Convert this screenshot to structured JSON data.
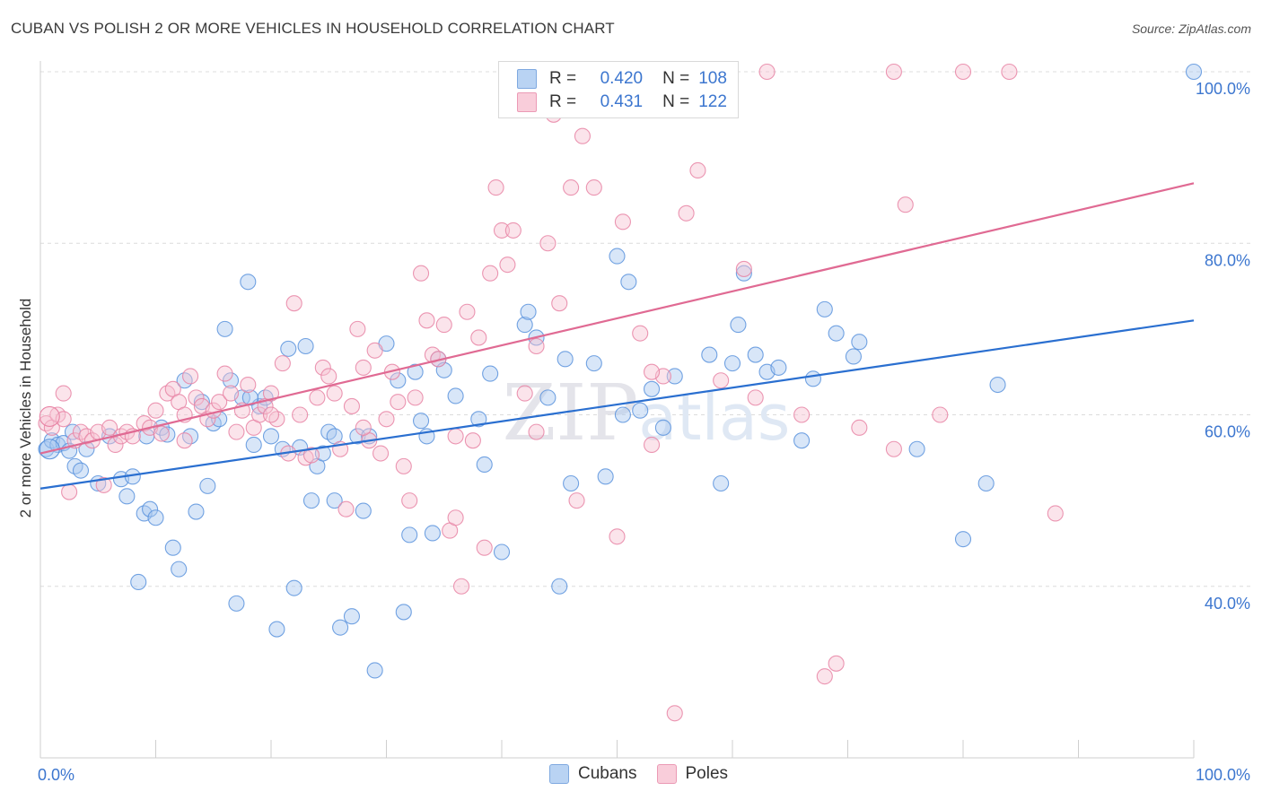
{
  "title": "CUBAN VS POLISH 2 OR MORE VEHICLES IN HOUSEHOLD CORRELATION CHART",
  "source": "Source: ZipAtlas.com",
  "watermark": "ZIPatlas",
  "legend": {
    "r_label": "R =",
    "n_label": "N =",
    "rows": [
      {
        "name": "Cubans",
        "r": "0.420",
        "n": "108",
        "color": "#9dc3ef"
      },
      {
        "name": "Poles",
        "r": "0.431",
        "n": "122",
        "color": "#f4b8cb"
      }
    ]
  },
  "chart_data": {
    "type": "scatter",
    "title": "CUBAN VS POLISH 2 OR MORE VEHICLES IN HOUSEHOLD CORRELATION CHART",
    "xlabel": "",
    "ylabel": "2 or more Vehicles in Household",
    "xlim": [
      0,
      100
    ],
    "ylim": [
      20,
      100
    ],
    "x_tick_labels": [
      "0.0%",
      "100.0%"
    ],
    "y_tick_labels": [
      "40.0%",
      "60.0%",
      "80.0%",
      "100.0%"
    ],
    "y_ticks": [
      40,
      60,
      80,
      100
    ],
    "grid": true,
    "legend_position": "top-center",
    "series": [
      {
        "name": "Cubans",
        "color": "#5b93dd",
        "fill": "#a8c8f0",
        "trend": {
          "x": [
            0,
            100
          ],
          "y": [
            51.4,
            71.0
          ],
          "color": "#2a6fd0"
        },
        "points": [
          [
            0.5,
            56.0
          ],
          [
            1.0,
            57.0
          ],
          [
            1.5,
            56.5
          ],
          [
            2.0,
            56.7
          ],
          [
            2.5,
            55.8
          ],
          [
            3.0,
            54.0
          ],
          [
            3.5,
            53.5
          ],
          [
            4.0,
            56.0
          ],
          [
            5.0,
            52.0
          ],
          [
            6.0,
            57.5
          ],
          [
            7.0,
            52.5
          ],
          [
            7.5,
            50.5
          ],
          [
            8.0,
            52.8
          ],
          [
            8.5,
            40.5
          ],
          [
            9.0,
            48.5
          ],
          [
            9.5,
            49.0
          ],
          [
            10.0,
            48.0
          ],
          [
            10.5,
            58.5
          ],
          [
            11.0,
            57.7
          ],
          [
            11.5,
            44.5
          ],
          [
            12.0,
            42.0
          ],
          [
            12.5,
            64.0
          ],
          [
            13.0,
            57.5
          ],
          [
            13.5,
            48.7
          ],
          [
            14.0,
            61.5
          ],
          [
            14.5,
            51.7
          ],
          [
            15.0,
            59.0
          ],
          [
            15.5,
            59.5
          ],
          [
            16.0,
            70.0
          ],
          [
            16.5,
            64.0
          ],
          [
            17.0,
            38.0
          ],
          [
            17.5,
            62.0
          ],
          [
            18.0,
            75.5
          ],
          [
            18.5,
            56.5
          ],
          [
            19.0,
            61.0
          ],
          [
            19.5,
            62.0
          ],
          [
            20.0,
            57.5
          ],
          [
            20.5,
            35.0
          ],
          [
            21.0,
            56.0
          ],
          [
            21.5,
            67.7
          ],
          [
            22.0,
            39.8
          ],
          [
            22.5,
            56.2
          ],
          [
            23.0,
            68.0
          ],
          [
            23.5,
            50.0
          ],
          [
            24.0,
            54.0
          ],
          [
            24.5,
            55.5
          ],
          [
            25.0,
            58.0
          ],
          [
            25.5,
            50.0
          ],
          [
            26.0,
            35.2
          ],
          [
            27.0,
            36.5
          ],
          [
            27.5,
            57.5
          ],
          [
            28.0,
            48.8
          ],
          [
            28.5,
            57.5
          ],
          [
            29.0,
            30.2
          ],
          [
            30.0,
            68.3
          ],
          [
            31.0,
            64.0
          ],
          [
            31.5,
            37.0
          ],
          [
            32.0,
            46.0
          ],
          [
            32.5,
            65.0
          ],
          [
            33.0,
            59.3
          ],
          [
            34.0,
            46.2
          ],
          [
            34.5,
            66.5
          ],
          [
            35.0,
            65.2
          ],
          [
            36.0,
            62.2
          ],
          [
            38.0,
            59.5
          ],
          [
            38.5,
            54.2
          ],
          [
            39.0,
            64.8
          ],
          [
            40.0,
            44.0
          ],
          [
            42.0,
            70.5
          ],
          [
            42.3,
            72.0
          ],
          [
            43.0,
            69.0
          ],
          [
            44.0,
            62.0
          ],
          [
            45.0,
            40.0
          ],
          [
            45.5,
            66.5
          ],
          [
            46.0,
            52.0
          ],
          [
            48.0,
            66.0
          ],
          [
            49.0,
            52.8
          ],
          [
            50.0,
            78.5
          ],
          [
            51.0,
            75.5
          ],
          [
            52.0,
            60.5
          ],
          [
            53.0,
            63.0
          ],
          [
            54.0,
            58.5
          ],
          [
            55.0,
            64.5
          ],
          [
            58.0,
            67.0
          ],
          [
            59.0,
            52.0
          ],
          [
            60.0,
            66.0
          ],
          [
            60.5,
            70.5
          ],
          [
            61.0,
            76.5
          ],
          [
            62.0,
            67.0
          ],
          [
            63.0,
            65.0
          ],
          [
            64.0,
            65.5
          ],
          [
            66.0,
            57.0
          ],
          [
            67.0,
            64.2
          ],
          [
            68.0,
            72.3
          ],
          [
            69.0,
            69.5
          ],
          [
            70.5,
            66.8
          ],
          [
            71.0,
            68.5
          ],
          [
            76.0,
            56.0
          ],
          [
            80.0,
            45.5
          ],
          [
            82.0,
            52.0
          ],
          [
            83.0,
            63.5
          ],
          [
            100.0,
            100.0
          ],
          [
            2.8,
            58.0
          ],
          [
            9.2,
            57.5
          ],
          [
            18.2,
            62.0
          ],
          [
            25.5,
            57.5
          ],
          [
            33.5,
            57.5
          ],
          [
            50.5,
            60.0
          ]
        ]
      },
      {
        "name": "Poles",
        "color": "#e884a5",
        "fill": "#f7c3d3",
        "trend": {
          "x": [
            0,
            100
          ],
          "y": [
            55.5,
            87.0
          ],
          "color": "#e06a93"
        },
        "points": [
          [
            0.5,
            59.0
          ],
          [
            1.0,
            58.5
          ],
          [
            1.5,
            60.0
          ],
          [
            2.0,
            59.5
          ],
          [
            2.5,
            51.0
          ],
          [
            3.0,
            57.0
          ],
          [
            3.5,
            58.0
          ],
          [
            4.0,
            57.5
          ],
          [
            4.5,
            57.0
          ],
          [
            5.0,
            58.0
          ],
          [
            5.5,
            51.8
          ],
          [
            6.0,
            58.5
          ],
          [
            6.5,
            56.5
          ],
          [
            7.0,
            57.5
          ],
          [
            7.5,
            58.0
          ],
          [
            8.0,
            57.5
          ],
          [
            9.0,
            59.0
          ],
          [
            9.5,
            58.5
          ],
          [
            10.0,
            60.5
          ],
          [
            10.5,
            57.8
          ],
          [
            11.0,
            62.5
          ],
          [
            11.5,
            63.0
          ],
          [
            12.0,
            61.5
          ],
          [
            12.5,
            60.0
          ],
          [
            13.0,
            64.5
          ],
          [
            13.5,
            62.0
          ],
          [
            14.0,
            61.0
          ],
          [
            14.5,
            59.5
          ],
          [
            15.0,
            60.5
          ],
          [
            15.5,
            61.5
          ],
          [
            16.0,
            64.8
          ],
          [
            16.5,
            62.5
          ],
          [
            17.0,
            58.0
          ],
          [
            17.5,
            60.5
          ],
          [
            18.0,
            63.5
          ],
          [
            18.5,
            58.5
          ],
          [
            19.0,
            60.0
          ],
          [
            19.5,
            61.0
          ],
          [
            20.0,
            62.5
          ],
          [
            20.5,
            59.5
          ],
          [
            21.0,
            66.0
          ],
          [
            21.5,
            55.5
          ],
          [
            22.0,
            73.0
          ],
          [
            22.5,
            60.0
          ],
          [
            23.0,
            55.0
          ],
          [
            23.5,
            55.3
          ],
          [
            24.0,
            62.0
          ],
          [
            24.5,
            65.5
          ],
          [
            25.0,
            64.5
          ],
          [
            25.5,
            62.5
          ],
          [
            26.0,
            56.0
          ],
          [
            26.5,
            49.0
          ],
          [
            27.0,
            61.0
          ],
          [
            27.5,
            70.0
          ],
          [
            28.0,
            65.5
          ],
          [
            28.5,
            57.0
          ],
          [
            29.0,
            67.5
          ],
          [
            29.5,
            55.5
          ],
          [
            30.0,
            59.5
          ],
          [
            30.5,
            65.0
          ],
          [
            31.0,
            61.5
          ],
          [
            31.5,
            54.0
          ],
          [
            32.0,
            50.0
          ],
          [
            32.5,
            62.0
          ],
          [
            33.0,
            76.5
          ],
          [
            33.5,
            71.0
          ],
          [
            34.0,
            67.0
          ],
          [
            34.5,
            66.5
          ],
          [
            35.0,
            70.5
          ],
          [
            35.5,
            46.5
          ],
          [
            36.0,
            48.0
          ],
          [
            36.5,
            40.0
          ],
          [
            37.0,
            72.0
          ],
          [
            37.5,
            57.0
          ],
          [
            38.0,
            69.0
          ],
          [
            38.5,
            44.5
          ],
          [
            39.0,
            76.5
          ],
          [
            39.5,
            86.5
          ],
          [
            40.0,
            81.5
          ],
          [
            40.5,
            77.5
          ],
          [
            41.0,
            81.5
          ],
          [
            42.0,
            62.5
          ],
          [
            43.0,
            68.0
          ],
          [
            44.0,
            80.0
          ],
          [
            44.5,
            95.0
          ],
          [
            45.0,
            73.0
          ],
          [
            46.0,
            86.5
          ],
          [
            46.5,
            50.0
          ],
          [
            47.0,
            92.5
          ],
          [
            48.0,
            86.5
          ],
          [
            49.0,
            100.0
          ],
          [
            50.0,
            45.8
          ],
          [
            50.5,
            82.5
          ],
          [
            51.0,
            100.0
          ],
          [
            52.0,
            69.5
          ],
          [
            53.0,
            56.5
          ],
          [
            54.0,
            64.5
          ],
          [
            55.0,
            25.2
          ],
          [
            56.0,
            83.5
          ],
          [
            57.0,
            88.5
          ],
          [
            61.0,
            77.0
          ],
          [
            62.0,
            62.0
          ],
          [
            63.0,
            100.0
          ],
          [
            68.0,
            29.5
          ],
          [
            69.0,
            31.0
          ],
          [
            74.0,
            100.0
          ],
          [
            75.0,
            84.5
          ],
          [
            78.0,
            60.0
          ],
          [
            80.0,
            100.0
          ],
          [
            84.0,
            100.0
          ],
          [
            88.0,
            48.5
          ],
          [
            2.0,
            62.5
          ],
          [
            12.5,
            57.0
          ],
          [
            20.0,
            60.0
          ],
          [
            28.0,
            58.5
          ],
          [
            36.0,
            57.5
          ],
          [
            43.0,
            58.0
          ],
          [
            53.0,
            65.0
          ],
          [
            59.0,
            64.0
          ],
          [
            66.0,
            60.0
          ],
          [
            71.0,
            58.5
          ],
          [
            74.0,
            56.0
          ]
        ]
      }
    ]
  }
}
